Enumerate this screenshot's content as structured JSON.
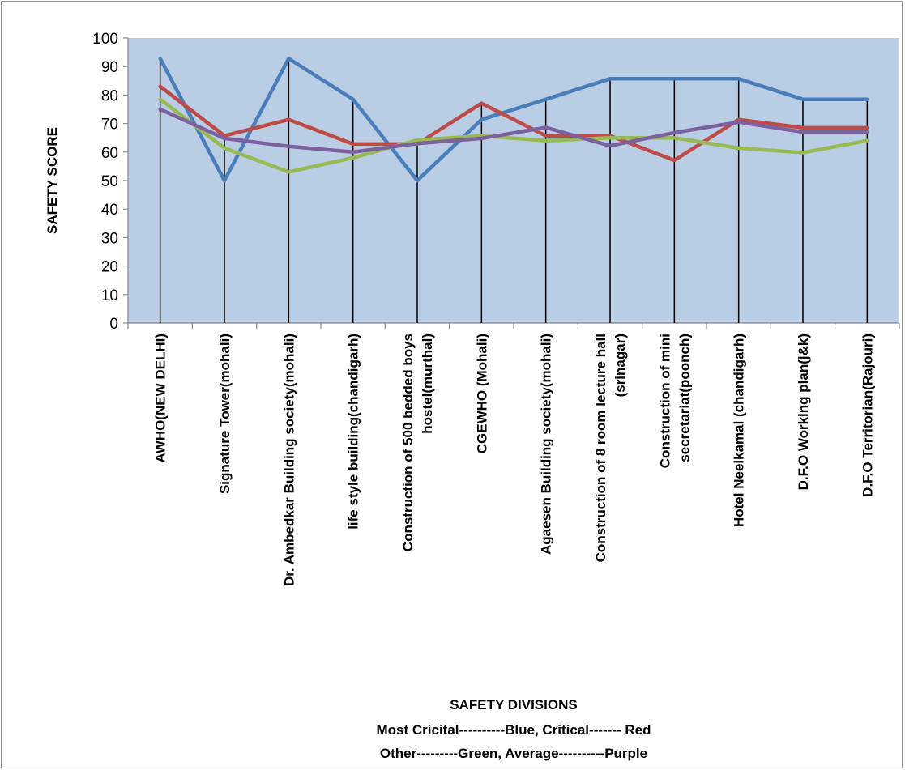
{
  "chart_data": {
    "type": "line",
    "title": "",
    "xlabel": "SAFETY DIVISIONS",
    "ylabel": "SAFETY SCORE",
    "ylim": [
      0,
      100
    ],
    "yticks": [
      0,
      10,
      20,
      30,
      40,
      50,
      60,
      70,
      80,
      90,
      100
    ],
    "grid": false,
    "plot_background": "#b9cde5",
    "categories": [
      [
        "AWHO(NEW DELHI)"
      ],
      [
        "Signature Tower(mohali)"
      ],
      [
        "Dr. Ambedkar Building society(mohali)"
      ],
      [
        "life style building(chandigarh)"
      ],
      [
        "Construction of 500 bedded boys",
        "hostel(murthal)"
      ],
      [
        "CGEWHO (Mohali)"
      ],
      [
        "Agaesen  Building society(mohali)"
      ],
      [
        "Construction of 8 room lecture hall",
        "(srinagar)"
      ],
      [
        "Construction of mini",
        "secretariat(poonch)"
      ],
      [
        "Hotel Neelkamal (chandigarh)"
      ],
      [
        "D.F.O Working plan(j&k)"
      ],
      [
        "D.F.O Territorian(Rajouri)"
      ]
    ],
    "series": [
      {
        "color": "#4a7ebb",
        "values": [
          92.8,
          50,
          92.8,
          78.5,
          50,
          71.4,
          78.5,
          85.7,
          85.7,
          85.7,
          78.5,
          78.5
        ]
      },
      {
        "color": "#be4b48",
        "values": [
          83,
          65.7,
          71.4,
          62.8,
          62.8,
          77.1,
          65.7,
          65.7,
          57.1,
          71.4,
          68.5,
          68.5
        ]
      },
      {
        "color": "#98b954",
        "values": [
          78.5,
          61.4,
          53,
          58,
          64.2,
          65.7,
          64,
          65,
          65,
          61.4,
          59.8,
          64
        ]
      },
      {
        "color": "#7d60a0",
        "values": [
          75,
          64.8,
          62,
          60,
          63,
          64.8,
          68.6,
          62.2,
          66.8,
          70.5,
          67,
          67
        ]
      }
    ],
    "drop_lines": true,
    "drop_line_color": "#000000",
    "notes": [
      "Most Cricital----------Blue, Critical------- Red",
      "Other---------Green, Average----------Purple"
    ]
  }
}
